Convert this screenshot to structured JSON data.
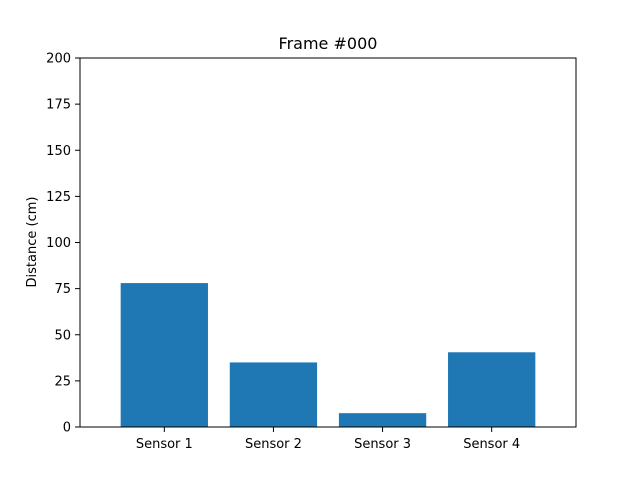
{
  "chart_data": {
    "type": "bar",
    "title": "Frame #000",
    "xlabel": "",
    "ylabel": "Distance (cm)",
    "categories": [
      "Sensor 1",
      "Sensor 2",
      "Sensor 3",
      "Sensor 4"
    ],
    "values": [
      78,
      35,
      7.5,
      40.5
    ],
    "ylim": [
      0,
      200
    ],
    "yticks": [
      0,
      25,
      50,
      75,
      100,
      125,
      150,
      175,
      200
    ],
    "bar_color": "#1f77b4",
    "grid": false,
    "legend": "none"
  }
}
